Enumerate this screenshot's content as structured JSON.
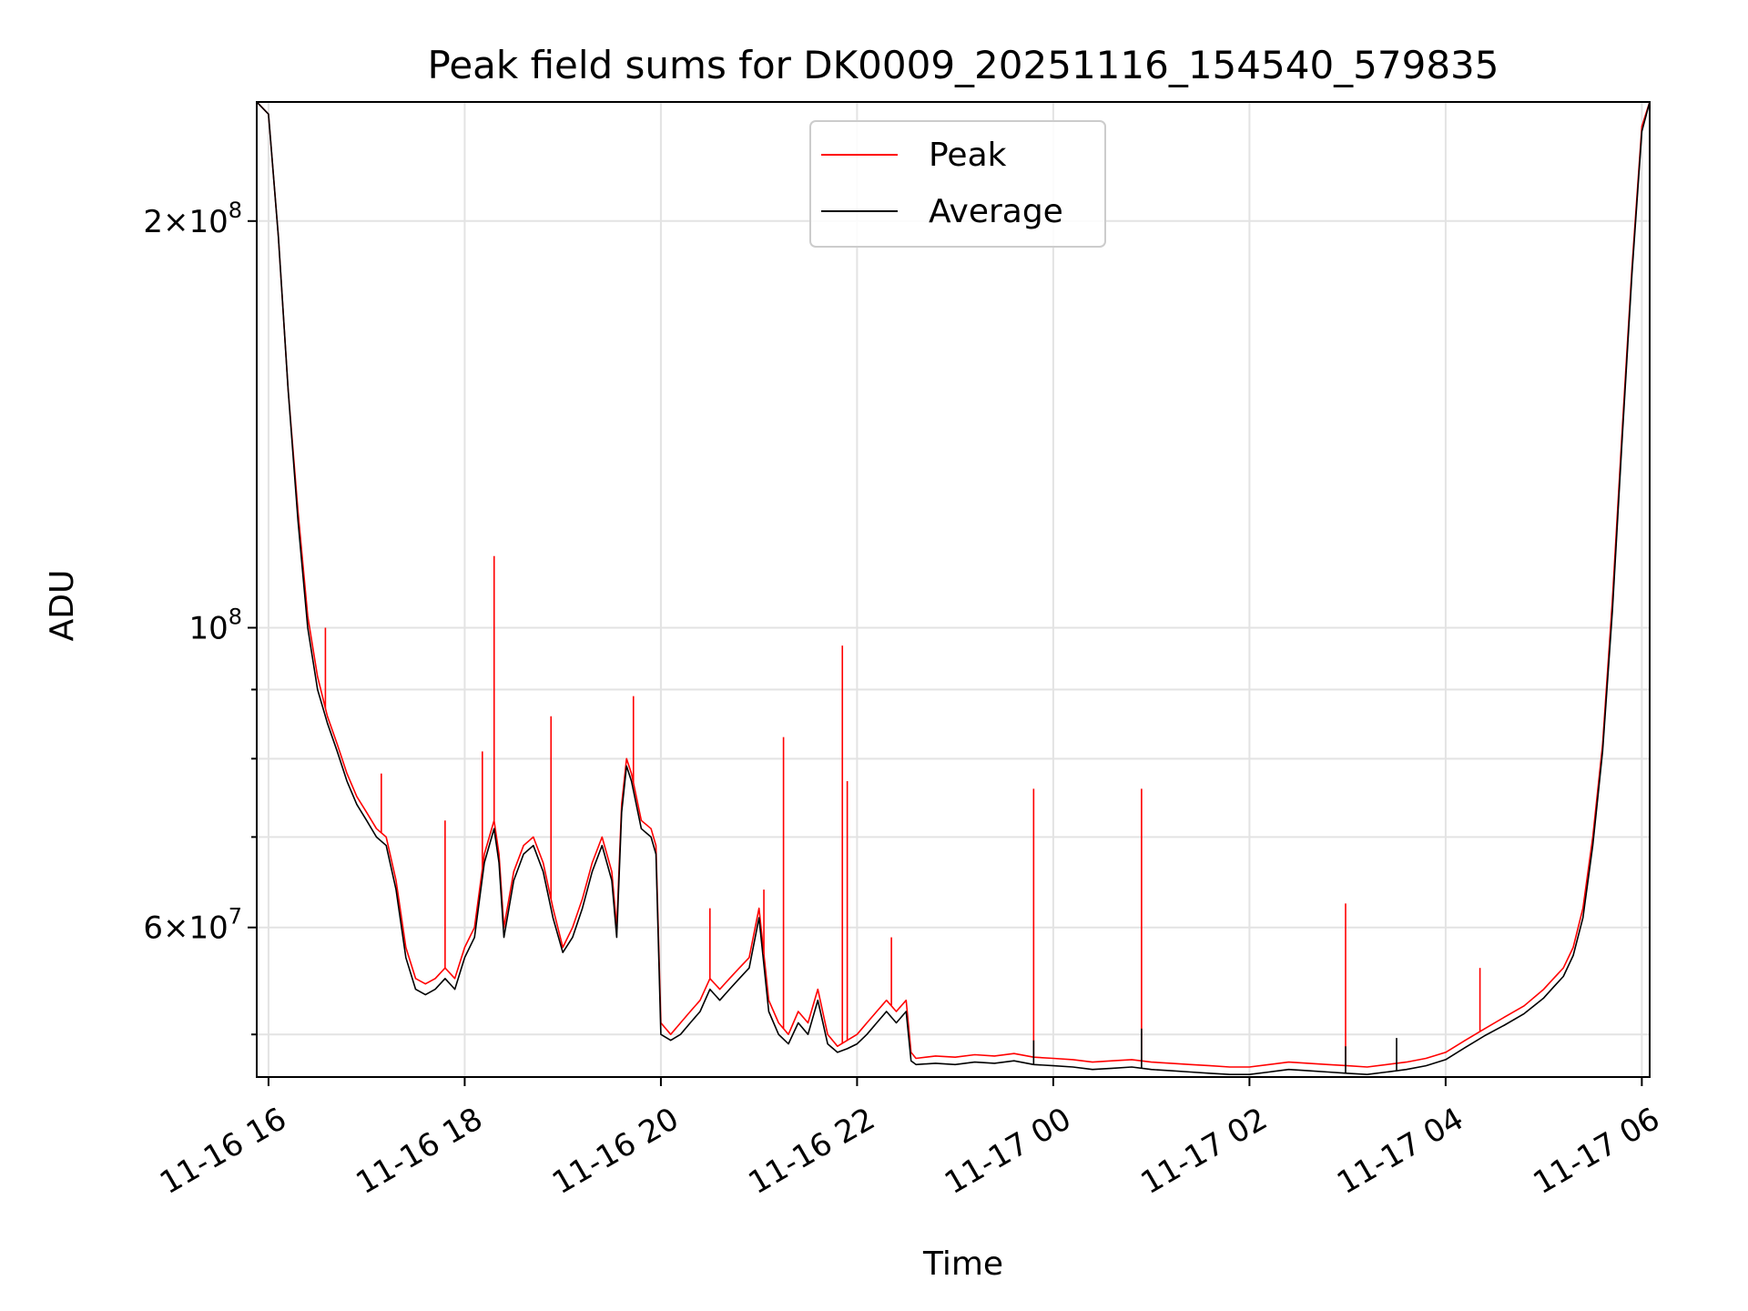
{
  "chart_data": {
    "type": "line",
    "title": "Peak field sums for DK0009_20251116_154540_579835",
    "xlabel": "Time",
    "ylabel": "ADU",
    "yscale": "log",
    "xlim": [
      15.88,
      30.08
    ],
    "ylim": [
      46500000,
      245000000
    ],
    "grid": true,
    "legend_position": "top-center",
    "x_unit": "hours since 2025-11-16 00:00",
    "x_ticks": [
      {
        "value": 16,
        "label": "11-16 16"
      },
      {
        "value": 18,
        "label": "11-16 18"
      },
      {
        "value": 20,
        "label": "11-16 20"
      },
      {
        "value": 22,
        "label": "11-16 22"
      },
      {
        "value": 24,
        "label": "11-17 00"
      },
      {
        "value": 26,
        "label": "11-17 02"
      },
      {
        "value": 28,
        "label": "11-17 04"
      },
      {
        "value": 30,
        "label": "11-17 06"
      }
    ],
    "y_major_ticks": [
      {
        "value": 200000000,
        "mant": "2",
        "exp": "8"
      },
      {
        "value": 100000000,
        "mant": "",
        "exp": "8"
      },
      {
        "value": 60000000,
        "mant": "6",
        "exp": "7"
      }
    ],
    "y_minor_ticks": [
      50000000,
      70000000,
      80000000,
      90000000
    ],
    "series": [
      {
        "name": "Peak",
        "color": "#ff0000",
        "x": [
          15.88,
          16.0,
          16.1,
          16.2,
          16.3,
          16.4,
          16.5,
          16.6,
          16.7,
          16.8,
          16.9,
          17.0,
          17.1,
          17.2,
          17.3,
          17.4,
          17.5,
          17.6,
          17.7,
          17.8,
          17.9,
          18.0,
          18.1,
          18.2,
          18.3,
          18.35,
          18.4,
          18.5,
          18.6,
          18.7,
          18.8,
          18.9,
          19.0,
          19.1,
          19.2,
          19.3,
          19.4,
          19.5,
          19.55,
          19.6,
          19.65,
          19.7,
          19.8,
          19.9,
          19.95,
          20.0,
          20.1,
          20.2,
          20.3,
          20.4,
          20.5,
          20.6,
          20.7,
          20.8,
          20.9,
          21.0,
          21.1,
          21.2,
          21.3,
          21.4,
          21.5,
          21.6,
          21.7,
          21.8,
          21.9,
          22.0,
          22.1,
          22.2,
          22.3,
          22.4,
          22.5,
          22.55,
          22.6,
          22.8,
          23.0,
          23.2,
          23.4,
          23.6,
          23.8,
          24.0,
          24.2,
          24.4,
          24.6,
          24.8,
          25.0,
          25.2,
          25.4,
          25.6,
          25.8,
          26.0,
          26.2,
          26.4,
          26.6,
          26.8,
          27.0,
          27.2,
          27.4,
          27.6,
          27.8,
          28.0,
          28.2,
          28.4,
          28.6,
          28.8,
          29.0,
          29.1,
          29.2,
          29.3,
          29.4,
          29.5,
          29.6,
          29.7,
          29.8,
          29.9,
          30.0,
          30.08
        ],
        "values": [
          245000000,
          240000000,
          195000000,
          150000000,
          122000000,
          102000000,
          92000000,
          86000000,
          82000000,
          78000000,
          75000000,
          73000000,
          71000000,
          70000000,
          65000000,
          58000000,
          55000000,
          54500000,
          55000000,
          56000000,
          55000000,
          58000000,
          60000000,
          68000000,
          72000000,
          68000000,
          60000000,
          66000000,
          69000000,
          70000000,
          67000000,
          62000000,
          58000000,
          60000000,
          63000000,
          67000000,
          70000000,
          66000000,
          60000000,
          74000000,
          80000000,
          78000000,
          72000000,
          71000000,
          69000000,
          51000000,
          50000000,
          51000000,
          52000000,
          53000000,
          55000000,
          54000000,
          55000000,
          56000000,
          57000000,
          62000000,
          53000000,
          51000000,
          50000000,
          52000000,
          51000000,
          54000000,
          50000000,
          49000000,
          49500000,
          50000000,
          51000000,
          52000000,
          53000000,
          52000000,
          53000000,
          48500000,
          48000000,
          48200000,
          48100000,
          48300000,
          48200000,
          48400000,
          48100000,
          48000000,
          47900000,
          47700000,
          47800000,
          47900000,
          47700000,
          47600000,
          47500000,
          47400000,
          47300000,
          47300000,
          47500000,
          47700000,
          47600000,
          47500000,
          47400000,
          47300000,
          47500000,
          47700000,
          48000000,
          48500000,
          49500000,
          50500000,
          51500000,
          52500000,
          54000000,
          55000000,
          56000000,
          58000000,
          62000000,
          70000000,
          82000000,
          105000000,
          140000000,
          185000000,
          235000000,
          245000000
        ]
      },
      {
        "name": "Average",
        "color": "#000000",
        "x": [
          15.88,
          16.0,
          16.1,
          16.2,
          16.3,
          16.4,
          16.5,
          16.6,
          16.7,
          16.8,
          16.9,
          17.0,
          17.1,
          17.2,
          17.3,
          17.4,
          17.5,
          17.6,
          17.7,
          17.8,
          17.9,
          18.0,
          18.1,
          18.2,
          18.3,
          18.35,
          18.4,
          18.5,
          18.6,
          18.7,
          18.8,
          18.9,
          19.0,
          19.1,
          19.2,
          19.3,
          19.4,
          19.5,
          19.55,
          19.6,
          19.65,
          19.7,
          19.8,
          19.9,
          19.95,
          20.0,
          20.1,
          20.2,
          20.3,
          20.4,
          20.5,
          20.6,
          20.7,
          20.8,
          20.9,
          21.0,
          21.1,
          21.2,
          21.3,
          21.4,
          21.5,
          21.6,
          21.7,
          21.8,
          21.9,
          22.0,
          22.1,
          22.2,
          22.3,
          22.4,
          22.5,
          22.55,
          22.6,
          22.8,
          23.0,
          23.2,
          23.4,
          23.6,
          23.8,
          24.0,
          24.2,
          24.4,
          24.6,
          24.8,
          25.0,
          25.2,
          25.4,
          25.6,
          25.8,
          26.0,
          26.2,
          26.4,
          26.6,
          26.8,
          27.0,
          27.2,
          27.4,
          27.6,
          27.8,
          28.0,
          28.2,
          28.4,
          28.6,
          28.8,
          29.0,
          29.1,
          29.2,
          29.3,
          29.4,
          29.5,
          29.6,
          29.7,
          29.8,
          29.9,
          30.0,
          30.08
        ],
        "values": [
          245000000,
          240000000,
          195000000,
          150000000,
          120000000,
          100000000,
          90000000,
          85000000,
          81000000,
          77000000,
          74000000,
          72000000,
          70000000,
          69000000,
          64000000,
          57000000,
          54000000,
          53500000,
          54000000,
          55000000,
          54000000,
          57000000,
          59000000,
          67000000,
          71000000,
          67000000,
          59000000,
          65000000,
          68000000,
          69000000,
          66000000,
          61000000,
          57500000,
          59000000,
          62000000,
          66000000,
          69000000,
          65000000,
          59000000,
          73000000,
          79000000,
          77000000,
          71000000,
          70000000,
          68000000,
          50000000,
          49500000,
          50000000,
          51000000,
          52000000,
          54000000,
          53000000,
          54000000,
          55000000,
          56000000,
          61000000,
          52000000,
          50000000,
          49200000,
          51000000,
          50000000,
          53000000,
          49200000,
          48500000,
          48800000,
          49200000,
          50000000,
          51000000,
          52000000,
          51000000,
          52000000,
          47800000,
          47500000,
          47600000,
          47500000,
          47700000,
          47600000,
          47800000,
          47500000,
          47400000,
          47300000,
          47100000,
          47200000,
          47300000,
          47100000,
          47000000,
          46900000,
          46800000,
          46700000,
          46700000,
          46900000,
          47100000,
          47000000,
          46900000,
          46800000,
          46700000,
          46900000,
          47100000,
          47400000,
          47900000,
          48900000,
          49900000,
          50800000,
          51800000,
          53200000,
          54200000,
          55200000,
          57200000,
          61000000,
          69000000,
          81000000,
          103000000,
          138000000,
          183000000,
          233000000,
          245000000
        ]
      }
    ],
    "peak_spikes": [
      {
        "x": 16.58,
        "value": 100000000
      },
      {
        "x": 17.15,
        "value": 78000000
      },
      {
        "x": 17.8,
        "value": 72000000
      },
      {
        "x": 18.18,
        "value": 81000000
      },
      {
        "x": 18.3,
        "value": 113000000
      },
      {
        "x": 18.88,
        "value": 86000000
      },
      {
        "x": 19.72,
        "value": 89000000
      },
      {
        "x": 20.5,
        "value": 62000000
      },
      {
        "x": 21.05,
        "value": 64000000
      },
      {
        "x": 21.25,
        "value": 83000000
      },
      {
        "x": 21.85,
        "value": 97000000
      },
      {
        "x": 21.9,
        "value": 77000000
      },
      {
        "x": 22.35,
        "value": 59000000
      },
      {
        "x": 23.8,
        "value": 76000000
      },
      {
        "x": 24.9,
        "value": 76000000
      },
      {
        "x": 26.98,
        "value": 62500000
      },
      {
        "x": 28.35,
        "value": 56000000
      }
    ],
    "average_spikes": [
      {
        "x": 23.8,
        "value": 49500000
      },
      {
        "x": 24.9,
        "value": 50500000
      },
      {
        "x": 26.98,
        "value": 49000000
      },
      {
        "x": 27.5,
        "value": 49700000
      }
    ]
  }
}
